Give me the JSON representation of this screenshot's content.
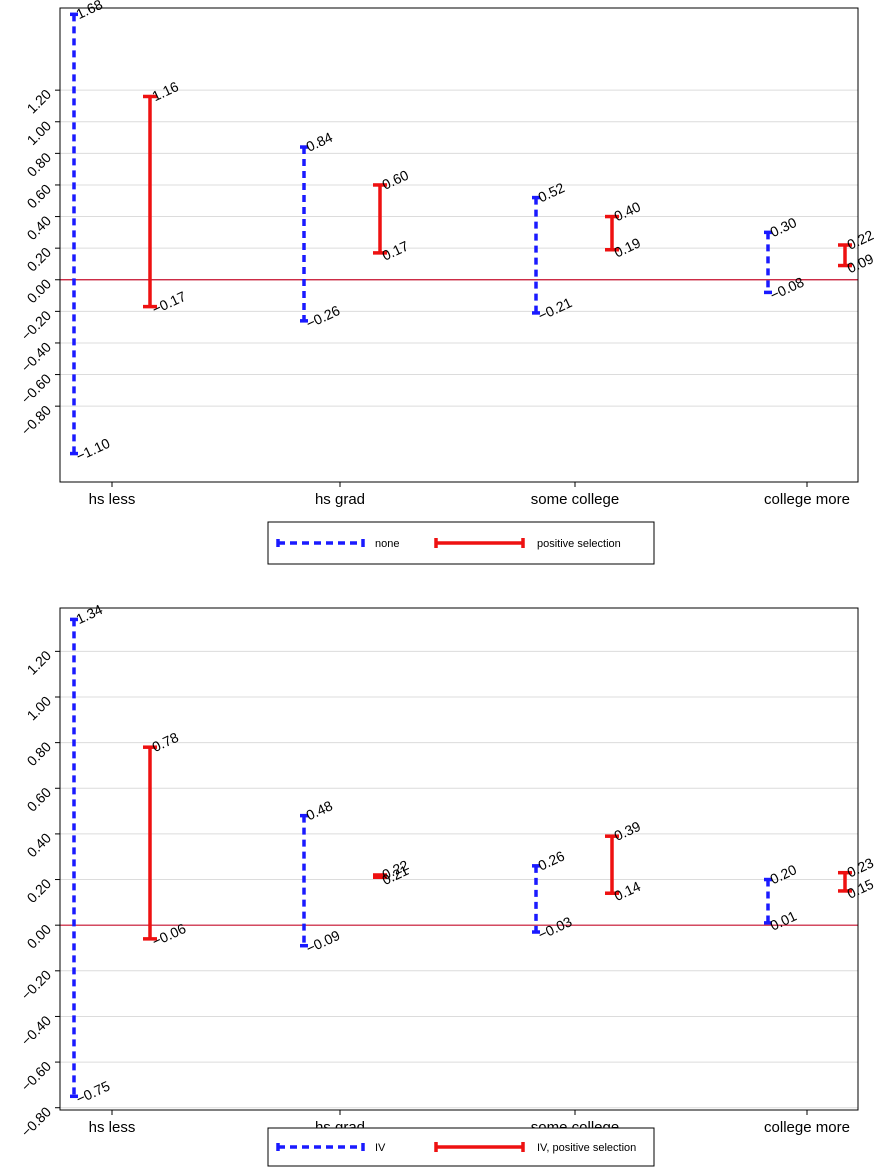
{
  "chart_data": [
    {
      "type": "interval",
      "categories": [
        "hs less",
        "hs grad",
        "some college",
        "college more"
      ],
      "yticks": [
        "-0.80",
        "-0.60",
        "-0.40",
        "-0.20",
        "0.00",
        "0.20",
        "0.40",
        "0.60",
        "0.80",
        "1.00",
        "1.20"
      ],
      "ylim": [
        -1.28,
        1.72
      ],
      "grid": true,
      "reference_line": 0,
      "legend_position": "bottom",
      "series": [
        {
          "name": "none",
          "style": "dashed",
          "color": "#1a1aff",
          "intervals": [
            {
              "low": -1.1,
              "high": 1.68,
              "low_label": "−1.10",
              "high_label": "1.68"
            },
            {
              "low": -0.26,
              "high": 0.84,
              "low_label": "−0.26",
              "high_label": "0.84"
            },
            {
              "low": -0.21,
              "high": 0.52,
              "low_label": "−0.21",
              "high_label": "0.52"
            },
            {
              "low": -0.08,
              "high": 0.3,
              "low_label": "−0.08",
              "high_label": "0.30"
            }
          ]
        },
        {
          "name": "positive selection",
          "style": "solid",
          "color": "#ee1111",
          "intervals": [
            {
              "low": -0.17,
              "high": 1.16,
              "low_label": "−0.17",
              "high_label": "1.16"
            },
            {
              "low": 0.17,
              "high": 0.6,
              "low_label": "0.17",
              "high_label": "0.60"
            },
            {
              "low": 0.19,
              "high": 0.4,
              "low_label": "0.19",
              "high_label": "0.40"
            },
            {
              "low": 0.09,
              "high": 0.22,
              "low_label": "0.09",
              "high_label": "0.22"
            }
          ]
        }
      ]
    },
    {
      "type": "interval",
      "categories": [
        "hs less",
        "hs grad",
        "some college",
        "college more"
      ],
      "yticks": [
        "-0.80",
        "-0.60",
        "-0.40",
        "-0.20",
        "0.00",
        "0.20",
        "0.40",
        "0.60",
        "0.80",
        "1.00",
        "1.20"
      ],
      "ylim": [
        -0.81,
        1.39
      ],
      "grid": true,
      "reference_line": 0,
      "legend_position": "bottom",
      "series": [
        {
          "name": "IV",
          "style": "dashed",
          "color": "#1a1aff",
          "intervals": [
            {
              "low": -0.75,
              "high": 1.34,
              "low_label": "−0.75",
              "high_label": "1.34"
            },
            {
              "low": -0.09,
              "high": 0.48,
              "low_label": "−0.09",
              "high_label": "0.48"
            },
            {
              "low": -0.03,
              "high": 0.26,
              "low_label": "−0.03",
              "high_label": "0.26"
            },
            {
              "low": 0.01,
              "high": 0.2,
              "low_label": "0.01",
              "high_label": "0.20"
            }
          ]
        },
        {
          "name": "IV, positive selection",
          "style": "solid",
          "color": "#ee1111",
          "intervals": [
            {
              "low": -0.06,
              "high": 0.78,
              "low_label": "−0.06",
              "high_label": "0.78"
            },
            {
              "low": 0.21,
              "high": 0.22,
              "low_label": "0.21",
              "high_label": "0.22"
            },
            {
              "low": 0.14,
              "high": 0.39,
              "low_label": "0.14",
              "high_label": "0.39"
            },
            {
              "low": 0.15,
              "high": 0.23,
              "low_label": "0.15",
              "high_label": "0.23"
            }
          ]
        }
      ]
    }
  ]
}
